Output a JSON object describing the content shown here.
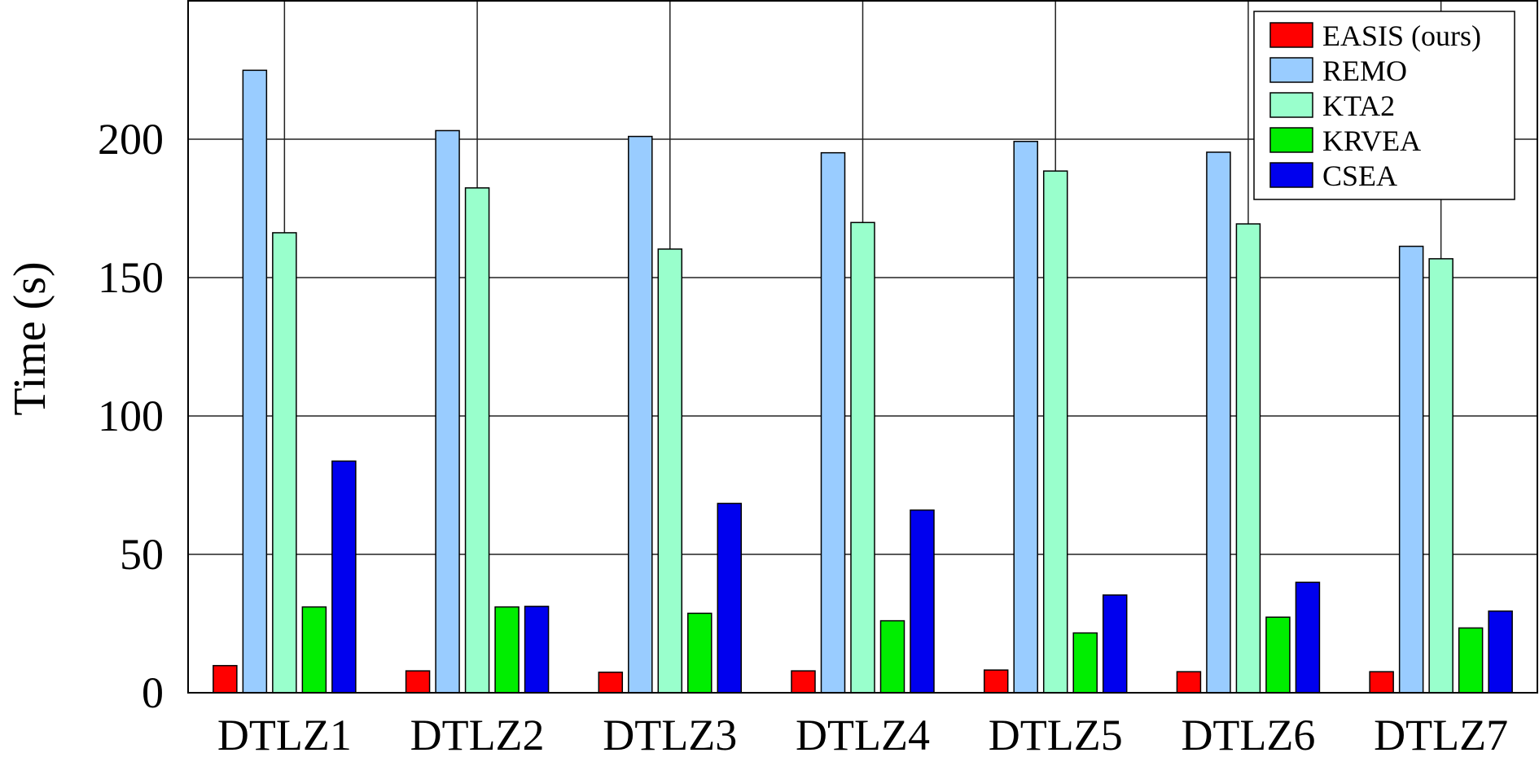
{
  "chart_data": {
    "type": "bar",
    "title": "",
    "xlabel": "",
    "ylabel": "Time (s)",
    "ylim": [
      0,
      250
    ],
    "yticks": [
      0,
      50,
      100,
      150,
      200
    ],
    "grid": true,
    "legend_position": "top-right",
    "categories": [
      "DTLZ1",
      "DTLZ2",
      "DTLZ3",
      "DTLZ4",
      "DTLZ5",
      "DTLZ6",
      "DTLZ7"
    ],
    "series": [
      {
        "name": "EASIS (ours)",
        "color": "#ff0000",
        "values": [
          9.8,
          7.9,
          7.4,
          7.9,
          8.2,
          7.6,
          7.6
        ]
      },
      {
        "name": "REMO",
        "color": "#99ccff",
        "values": [
          224.9,
          203.1,
          201.0,
          195.1,
          199.2,
          195.3,
          161.3
        ]
      },
      {
        "name": "KTA2",
        "color": "#99ffcc",
        "values": [
          166.2,
          182.4,
          160.3,
          169.9,
          188.5,
          169.4,
          156.8
        ]
      },
      {
        "name": "KRVEA",
        "color": "#00ee00",
        "values": [
          31.0,
          31.0,
          28.7,
          26.0,
          21.6,
          27.3,
          23.4
        ]
      },
      {
        "name": "CSEA",
        "color": "#0000ee",
        "values": [
          83.7,
          31.2,
          68.4,
          66.0,
          35.3,
          39.9,
          29.5
        ]
      }
    ]
  }
}
